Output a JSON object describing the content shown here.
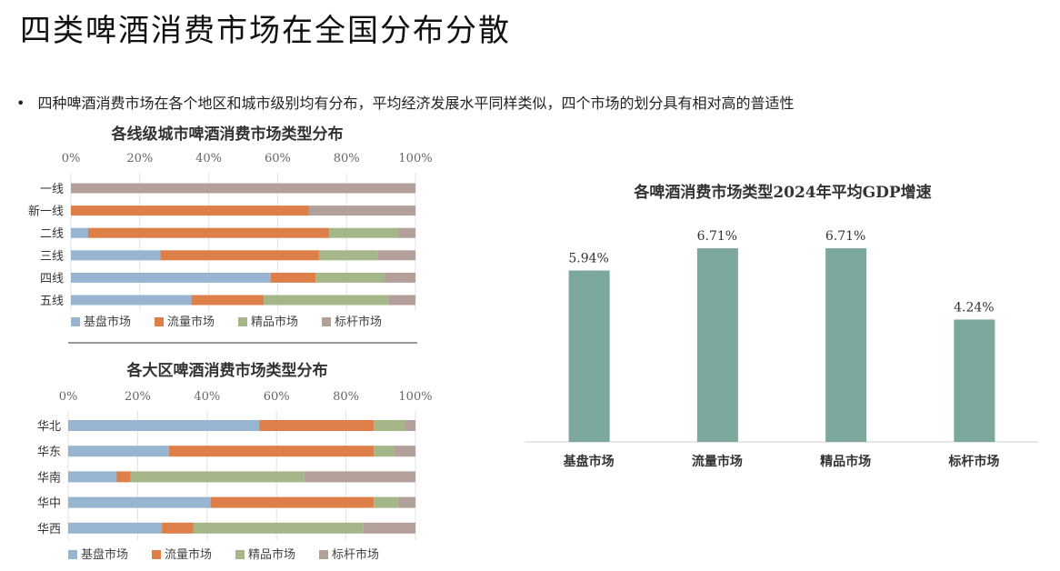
{
  "page": {
    "title": "四类啤酒消费市场在全国分布分散",
    "bullet": "四种啤酒消费市场在各个地区和城市级别均有分布，平均经济发展水平同样类似，四个市场的划分具有相对高的普适性"
  },
  "colors": {
    "基盘市场": "#97B4D1",
    "流量市场": "#DE7E48",
    "精品市场": "#A5B688",
    "标杆市场": "#B3A09B",
    "gdp_bar": "#7BA79C"
  },
  "chart_data": [
    {
      "type": "bar",
      "orientation": "horizontal",
      "stacked": "percent",
      "title": "各线级城市啤酒消费市场类型分布",
      "categories": [
        "一线",
        "新一线",
        "二线",
        "三线",
        "四线",
        "五线"
      ],
      "xlim": [
        0,
        100
      ],
      "x_ticks": [
        "0%",
        "20%",
        "40%",
        "60%",
        "80%",
        "100%"
      ],
      "series": [
        {
          "name": "基盘市场",
          "values": [
            0,
            0,
            5,
            26,
            58,
            35
          ]
        },
        {
          "name": "流量市场",
          "values": [
            0,
            69,
            70,
            46,
            13,
            21
          ]
        },
        {
          "name": "精品市场",
          "values": [
            0,
            0,
            20,
            17,
            20,
            36
          ]
        },
        {
          "name": "标杆市场",
          "values": [
            100,
            31,
            5,
            11,
            9,
            8
          ]
        }
      ],
      "legend": "bottom",
      "grid": true
    },
    {
      "type": "bar",
      "orientation": "horizontal",
      "stacked": "percent",
      "title": "各大区啤酒消费市场类型分布",
      "categories": [
        "华北",
        "华东",
        "华南",
        "华中",
        "华西"
      ],
      "xlim": [
        0,
        100
      ],
      "x_ticks": [
        "0%",
        "20%",
        "40%",
        "60%",
        "80%",
        "100%"
      ],
      "series": [
        {
          "name": "基盘市场",
          "values": [
            55,
            29,
            14,
            41,
            27
          ]
        },
        {
          "name": "流量市场",
          "values": [
            33,
            59,
            4,
            47,
            9
          ]
        },
        {
          "name": "精品市场",
          "values": [
            9,
            6,
            50,
            7,
            49
          ]
        },
        {
          "name": "标杆市场",
          "values": [
            3,
            6,
            32,
            5,
            15
          ]
        }
      ],
      "legend": "bottom",
      "grid": true
    },
    {
      "type": "bar",
      "title": "各啤酒消费市场类型2024年平均GDP增速",
      "categories": [
        "基盘市场",
        "流量市场",
        "精品市场",
        "标杆市场"
      ],
      "values": [
        5.94,
        6.71,
        6.71,
        4.24
      ],
      "data_labels": [
        "5.94%",
        "6.71%",
        "6.71%",
        "4.24%"
      ],
      "ylim": [
        0,
        7.5
      ],
      "grid": false
    }
  ]
}
